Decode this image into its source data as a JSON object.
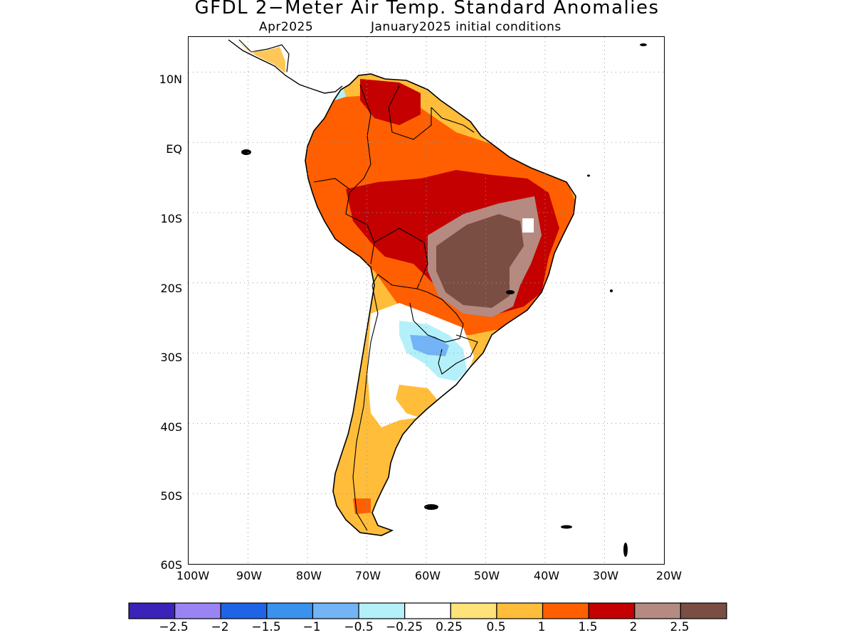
{
  "title": "GFDL 2−Meter Air Temp. Standard Anomalies",
  "subtitle_left": "Apr2025",
  "subtitle_right": "January2025 initial conditions",
  "map": {
    "region": "South America",
    "lat_ticks": [
      "10N",
      "EQ",
      "10S",
      "20S",
      "30S",
      "40S",
      "50S",
      "60S"
    ],
    "lon_ticks": [
      "100W",
      "90W",
      "80W",
      "70W",
      "60W",
      "50W",
      "40W",
      "30W",
      "20W"
    ],
    "gridlines": "dotted",
    "anomaly_regions": [
      {
        "area": "central Brazil plateau",
        "category": ">2.5"
      },
      {
        "area": "Amazon basin / northern Bolivia / Peru interior",
        "category": "1.5 to 2"
      },
      {
        "area": "northern Venezuela",
        "category": "1.5 to 2"
      },
      {
        "area": "northwestern South America",
        "category": "1 to 1.5"
      },
      {
        "area": "southern Brazil",
        "category": "1 to 1.5"
      },
      {
        "area": "Paraguay / Uruguay coast",
        "category": "-1 to -0.5"
      },
      {
        "area": "northern Argentina interior",
        "category": "-0.5 to 0.5"
      },
      {
        "area": "Patagonia / Chile",
        "category": "0.25 to 1"
      }
    ]
  },
  "colorbar": {
    "colors": [
      "#3b22b8",
      "#9a84f5",
      "#1f64e8",
      "#3a92ee",
      "#72b4f5",
      "#b4f0fa",
      "#ffffff",
      "#ffe278",
      "#ffbd3a",
      "#ff5f00",
      "#c40000",
      "#b58a80",
      "#7a4e43"
    ],
    "labels": [
      "−2.5",
      "−2",
      "−1.5",
      "−1",
      "−0.5",
      "−0.25",
      "0.25",
      "0.5",
      "1",
      "1.5",
      "2",
      "2.5"
    ]
  },
  "chart_data": {
    "type": "heatmap",
    "title": "GFDL 2−Meter Air Temp. Standard Anomalies",
    "subtitle": "Apr2025      January2025 initial conditions",
    "xlabel": "",
    "ylabel": "",
    "xlim": [
      -100,
      -20
    ],
    "ylim": [
      -60,
      15
    ],
    "x_ticks": [
      "100W",
      "90W",
      "80W",
      "70W",
      "60W",
      "50W",
      "40W",
      "30W",
      "20W"
    ],
    "y_ticks": [
      "10N",
      "EQ",
      "10S",
      "20S",
      "30S",
      "40S",
      "50S",
      "60S"
    ],
    "levels": [
      -2.5,
      -2,
      -1.5,
      -1,
      -0.5,
      -0.25,
      0.25,
      0.5,
      1,
      1.5,
      2,
      2.5
    ],
    "grid": true
  }
}
